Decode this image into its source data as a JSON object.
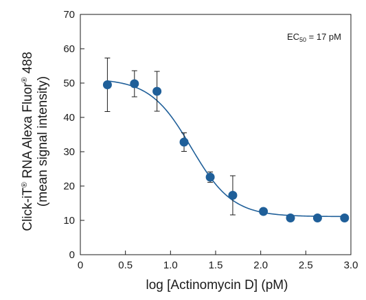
{
  "chart_data": {
    "type": "scatter",
    "title": "",
    "xlabel": "log [Actinomycin D] (pM)",
    "ylabel_parts": {
      "line1_pre": "Click-iT",
      "line1_reg1": "®",
      "line1_mid": " RNA Alexa Fluor",
      "line1_reg2": "®",
      "line1_post": " 488",
      "line2": "(mean signal intensity)"
    },
    "xlim": [
      0,
      3.0
    ],
    "ylim": [
      0,
      70
    ],
    "x_ticks": [
      0,
      0.5,
      1.0,
      1.5,
      2.0,
      2.5,
      3.0
    ],
    "x_tick_labels": [
      "0",
      "0.5",
      "1.0",
      "1.5",
      "2.0",
      "2.5",
      "3.0"
    ],
    "y_ticks": [
      0,
      10,
      20,
      30,
      40,
      50,
      60,
      70
    ],
    "y_tick_labels": [
      "0",
      "10",
      "20",
      "30",
      "40",
      "50",
      "60",
      "70"
    ],
    "grid": false,
    "series": [
      {
        "color": "#1f5f99",
        "x": [
          0.3,
          0.6,
          0.85,
          1.15,
          1.44,
          1.69,
          2.03,
          2.33,
          2.63,
          2.93
        ],
        "y": [
          49.5,
          49.8,
          47.6,
          32.8,
          22.6,
          17.3,
          12.6,
          10.7,
          10.7,
          10.7
        ],
        "error": [
          7.8,
          3.8,
          5.8,
          2.7,
          1.5,
          5.7,
          0.5,
          0.3,
          0.3,
          0.3
        ]
      }
    ],
    "fit": {
      "model": "4PL",
      "top": 51.3,
      "bottom": 11.1,
      "log_ec50": 1.23,
      "hill": 1.9,
      "color": "#1f5f99"
    },
    "annotation": {
      "main": "EC",
      "subscript": "50",
      "rest": " = 17 pM",
      "placement": "top-right"
    }
  }
}
